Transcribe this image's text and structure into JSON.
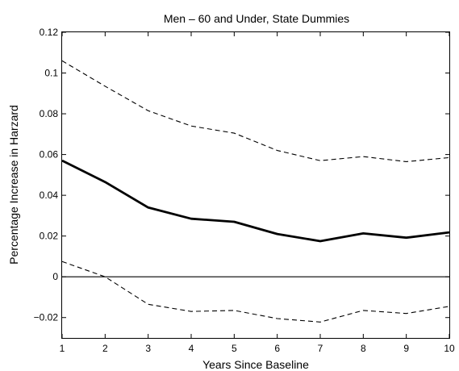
{
  "chart_data": {
    "type": "line",
    "title": "Men – 60 and Under, State Dummies",
    "xlabel": "Years Since Baseline",
    "ylabel": "Percentage Increase in Harzard",
    "xlim": [
      1,
      10
    ],
    "ylim": [
      -0.03,
      0.12
    ],
    "x_ticks": [
      1,
      2,
      3,
      4,
      5,
      6,
      7,
      8,
      9,
      10
    ],
    "y_ticks": [
      -0.02,
      0,
      0.02,
      0.04,
      0.06,
      0.08,
      0.1,
      0.12
    ],
    "y_tick_labels": [
      "−0.02",
      "0",
      "0.02",
      "0.04",
      "0.06",
      "0.08",
      "0.1",
      "0.12"
    ],
    "x": [
      1,
      2,
      3,
      4,
      5,
      6,
      7,
      8,
      9,
      10
    ],
    "series": [
      {
        "values": [
          0.057,
          0.0465,
          0.034,
          0.0285,
          0.027,
          0.021,
          0.0175,
          0.0213,
          0.0192,
          0.0218
        ],
        "style": "solid-thick"
      },
      {
        "values": [
          0.106,
          0.0935,
          0.0815,
          0.074,
          0.0705,
          0.062,
          0.057,
          0.059,
          0.0565,
          0.0585
        ],
        "style": "dashed"
      },
      {
        "values": [
          0.0075,
          0.0,
          -0.0135,
          -0.017,
          -0.0165,
          -0.0205,
          -0.0222,
          -0.0165,
          -0.018,
          -0.0145
        ],
        "style": "dashed"
      }
    ],
    "reference_line": {
      "y": 0,
      "style": "solid-thin"
    },
    "grid": false,
    "colors": {
      "line": "#000000",
      "background": "#ffffff"
    }
  }
}
